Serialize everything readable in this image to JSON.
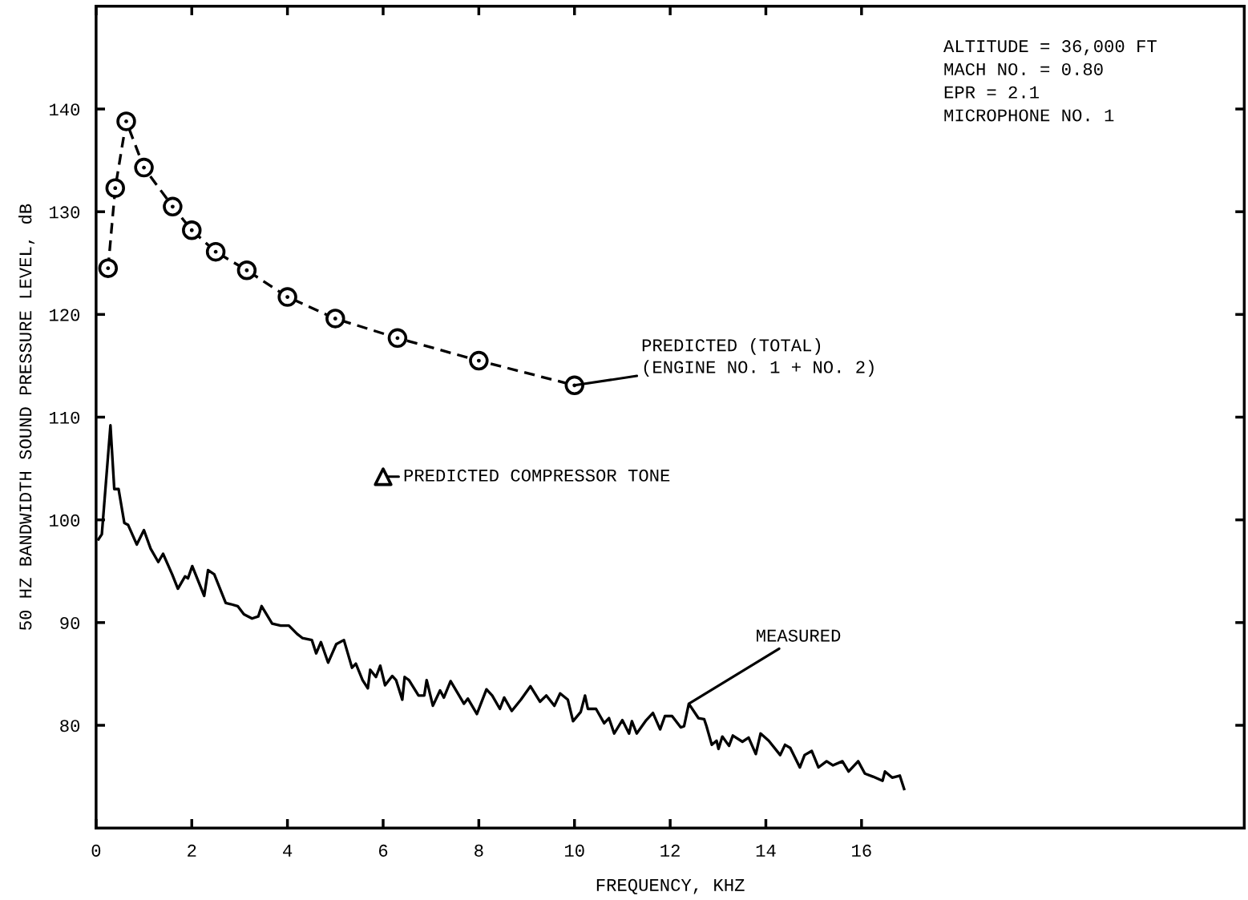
{
  "chart_data": {
    "type": "line",
    "xlabel": "FREQUENCY, KHZ",
    "ylabel": "50 HZ BANDWIDTH SOUND PRESSURE LEVEL, dB",
    "xlim": [
      0,
      24
    ],
    "xticks": [
      0,
      2,
      4,
      6,
      8,
      10,
      12,
      14,
      16
    ],
    "ylim": [
      70,
      150
    ],
    "yticks": [
      80,
      90,
      100,
      110,
      120,
      130,
      140
    ],
    "grid": false,
    "legend": false,
    "series": [
      {
        "color": "#000000",
        "marker": "circle",
        "line_style": "dashed",
        "x": [
          0.25,
          0.4,
          0.63,
          1,
          1.6,
          2,
          2.5,
          3.15,
          4,
          5,
          6.3,
          8,
          10
        ],
        "values": [
          124.5,
          132.3,
          138.8,
          134.3,
          130.5,
          128.2,
          126.1,
          124.3,
          121.7,
          119.6,
          117.7,
          115.5,
          113.1
        ]
      },
      {
        "type": "scatter",
        "color": "#000000",
        "marker": "triangle",
        "x": [
          6.0
        ],
        "values": [
          104.2
        ]
      },
      {
        "color": "#000000",
        "marker": "none",
        "line_style": "solid",
        "x": [
          0.05,
          0.12,
          0.3,
          0.38,
          0.47,
          0.59,
          0.67,
          0.85,
          1.0,
          1.14,
          1.3,
          1.4,
          1.59,
          1.71,
          1.86,
          1.92,
          2.01,
          2.26,
          2.34,
          2.47,
          2.71,
          2.81,
          2.96,
          3.09,
          3.26,
          3.39,
          3.46,
          3.68,
          3.86,
          4.03,
          4.2,
          4.31,
          4.51,
          4.6,
          4.7,
          4.85,
          5.02,
          5.18,
          5.35,
          5.43,
          5.57,
          5.68,
          5.73,
          5.85,
          5.94,
          6.04,
          6.19,
          6.27,
          6.4,
          6.45,
          6.54,
          6.74,
          6.86,
          6.91,
          7.04,
          7.19,
          7.27,
          7.41,
          7.69,
          7.77,
          7.96,
          8.16,
          8.28,
          8.44,
          8.53,
          8.69,
          8.88,
          9.08,
          9.28,
          9.41,
          9.58,
          9.7,
          9.86,
          9.97,
          10.13,
          10.22,
          10.28,
          10.45,
          10.62,
          10.72,
          10.83,
          11.0,
          11.14,
          11.2,
          11.3,
          11.5,
          11.64,
          11.79,
          11.89,
          12.04,
          12.22,
          12.29,
          12.39,
          12.59,
          12.71,
          12.76,
          12.87,
          12.97,
          13.01,
          13.09,
          13.23,
          13.31,
          13.51,
          13.64,
          13.79,
          13.89,
          14.06,
          14.3,
          14.4,
          14.51,
          14.71,
          14.81,
          14.96,
          15.1,
          15.27,
          15.4,
          15.6,
          15.73,
          15.93,
          16.07,
          16.24,
          16.44,
          16.49,
          16.64,
          16.8,
          16.89
        ],
        "values": [
          98.1,
          98.6,
          109.2,
          103.0,
          103.0,
          99.7,
          99.5,
          97.6,
          99.0,
          97.2,
          95.9,
          96.7,
          94.7,
          93.3,
          94.5,
          94.3,
          95.5,
          92.6,
          95.1,
          94.7,
          91.9,
          91.8,
          91.6,
          90.8,
          90.4,
          90.6,
          91.6,
          89.9,
          89.7,
          89.7,
          88.9,
          88.5,
          88.3,
          87.0,
          88.1,
          86.1,
          87.9,
          88.3,
          85.6,
          86.0,
          84.4,
          83.6,
          85.4,
          84.7,
          85.8,
          83.9,
          84.8,
          84.4,
          82.5,
          84.7,
          84.4,
          82.9,
          82.9,
          84.4,
          81.9,
          83.4,
          82.7,
          84.3,
          82.1,
          82.6,
          81.1,
          83.5,
          82.9,
          81.6,
          82.7,
          81.4,
          82.5,
          83.8,
          82.3,
          82.9,
          81.9,
          83.1,
          82.5,
          80.4,
          81.3,
          82.9,
          81.6,
          81.6,
          80.2,
          80.7,
          79.2,
          80.5,
          79.2,
          80.4,
          79.2,
          80.5,
          81.2,
          79.6,
          80.9,
          80.9,
          79.8,
          79.9,
          82.1,
          80.7,
          80.6,
          79.9,
          78.1,
          78.5,
          77.7,
          78.9,
          78.0,
          79.0,
          78.4,
          78.8,
          77.2,
          79.2,
          78.5,
          77.1,
          78.1,
          77.8,
          75.9,
          77.1,
          77.5,
          75.9,
          76.5,
          76.1,
          76.5,
          75.5,
          76.5,
          75.3,
          75.0,
          74.6,
          75.5,
          74.9,
          75.1,
          73.8
        ]
      }
    ],
    "annotations": [
      "ALTITUDE = 36,000 FT\nMACH NO. = 0.80\nEPR = 2.1\nMICROPHONE NO. 1",
      {
        "text": "PREDICTED (TOTAL)\n(ENGINE NO. 1 + NO. 2)",
        "x": 10,
        "y": 113.1
      },
      {
        "text": "PREDICTED COMPRESSOR TONE",
        "x": 6.0,
        "y": 104.2
      },
      {
        "text": "MEASURED",
        "x": 12.39,
        "y": 82.1
      }
    ]
  }
}
